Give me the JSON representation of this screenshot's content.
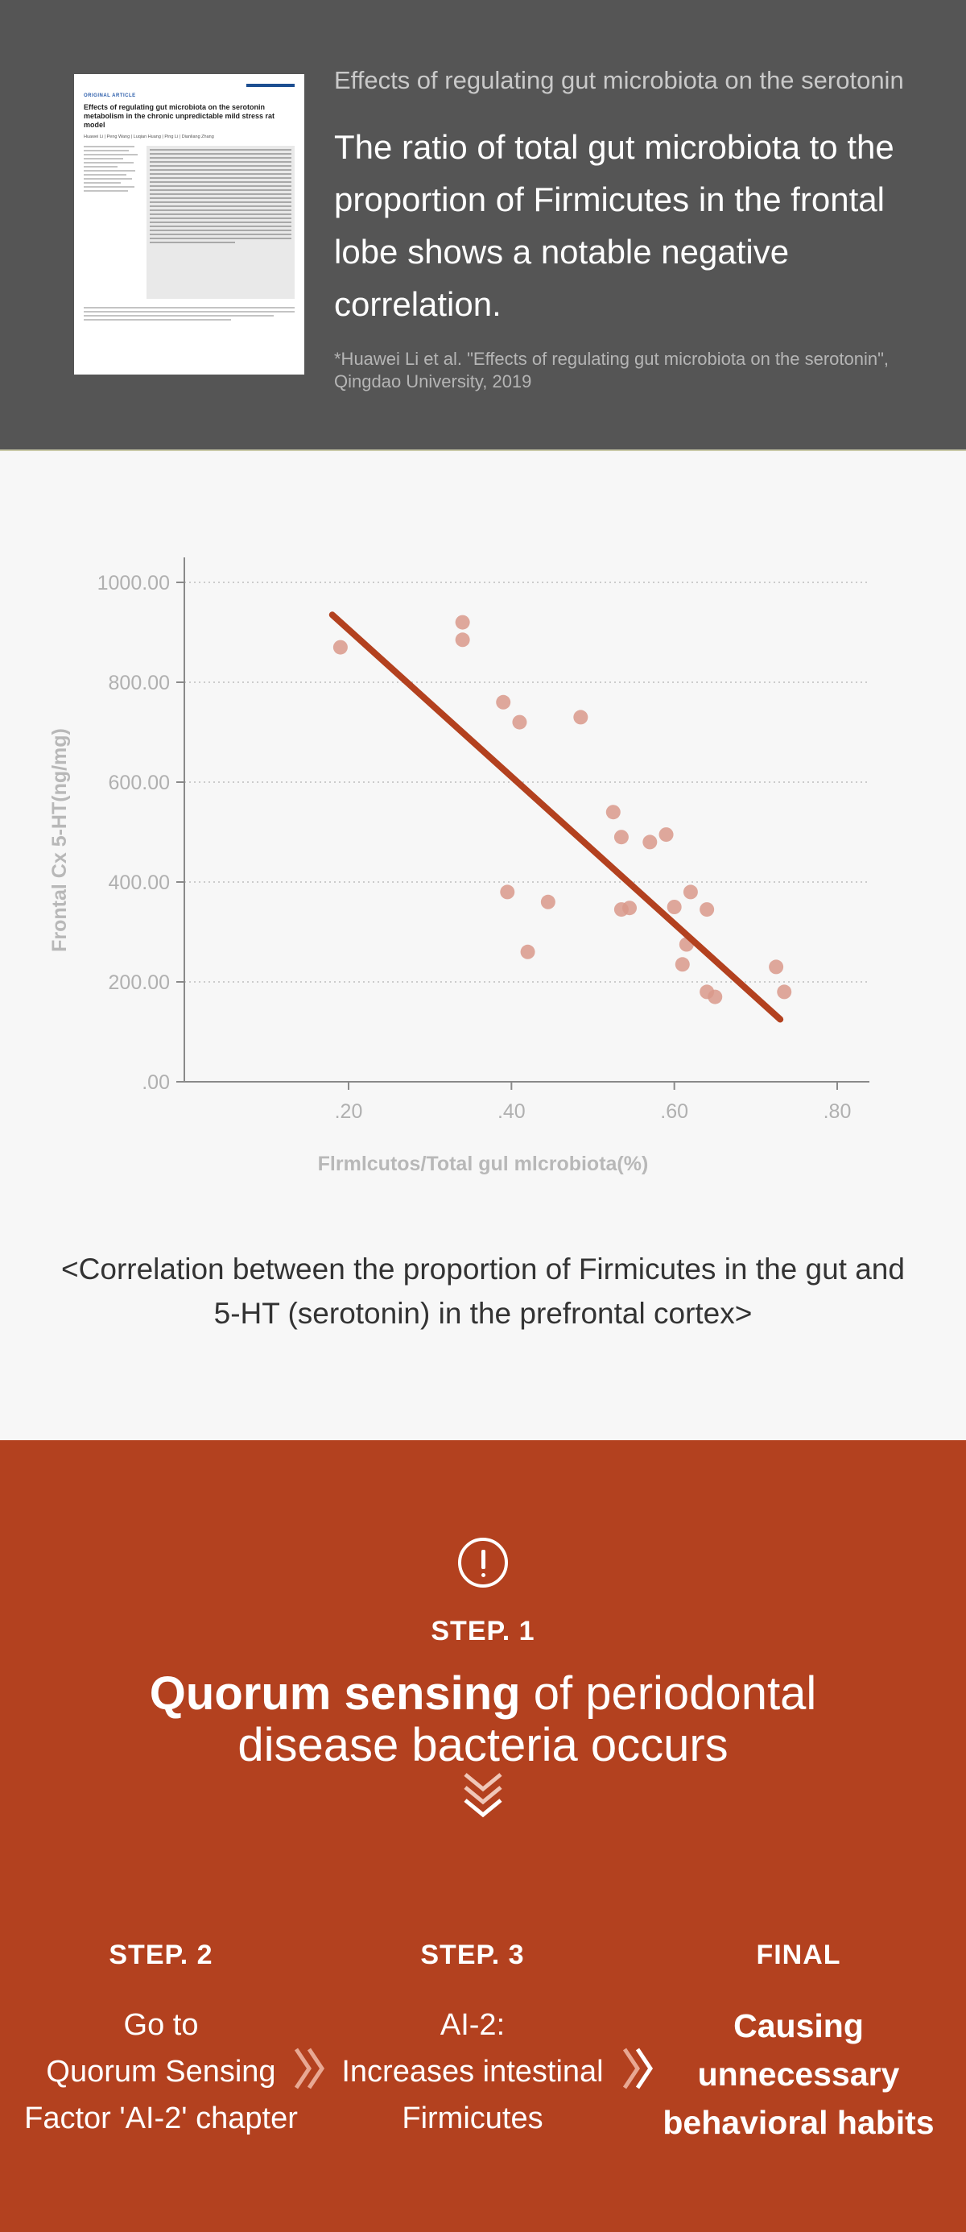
{
  "header": {
    "subtitle": "Effects of regulating gut microbiota on the serotonin",
    "title": "The ratio of total gut microbiota to the proportion of Firmicutes in the frontal lobe shows a notable negative correlation.",
    "citation": "*Huawei Li et al. \"Effects of regulating gut microbiota on the serotonin\", Qingdao University, 2019",
    "paper_thumbnail": {
      "label": "ORIGINAL ARTICLE",
      "title": "Effects of regulating gut microbiota on the serotonin metabolism in the chronic unpredictable mild stress rat model",
      "authors": "Huawei Li | Peng Wang | Luqian Huang | Ping Li | Dianliang Zhang"
    }
  },
  "chart_data": {
    "type": "scatter",
    "xlabel": "Flrmlcutos/Total gul mlcrobiota(%)",
    "ylabel": "Frontal Cx 5-HT(ng/mg)",
    "xlim": [
      0.1,
      0.85
    ],
    "ylim": [
      0,
      1050
    ],
    "xticks": [
      ".20",
      ".40",
      ".60",
      ".80"
    ],
    "xtick_values": [
      0.2,
      0.4,
      0.6,
      0.8
    ],
    "yticks": [
      ".00",
      "200.00",
      "400.00",
      "600.00",
      "800.00",
      "1000.00"
    ],
    "ytick_values": [
      0,
      200,
      400,
      600,
      800,
      1000
    ],
    "grid": "horizontal dotted",
    "points": [
      {
        "x": 0.19,
        "y": 870
      },
      {
        "x": 0.34,
        "y": 920
      },
      {
        "x": 0.34,
        "y": 885
      },
      {
        "x": 0.39,
        "y": 760
      },
      {
        "x": 0.41,
        "y": 720
      },
      {
        "x": 0.485,
        "y": 730
      },
      {
        "x": 0.395,
        "y": 380
      },
      {
        "x": 0.445,
        "y": 360
      },
      {
        "x": 0.42,
        "y": 260
      },
      {
        "x": 0.525,
        "y": 540
      },
      {
        "x": 0.535,
        "y": 490
      },
      {
        "x": 0.57,
        "y": 480
      },
      {
        "x": 0.59,
        "y": 495
      },
      {
        "x": 0.535,
        "y": 345
      },
      {
        "x": 0.545,
        "y": 348
      },
      {
        "x": 0.6,
        "y": 350
      },
      {
        "x": 0.62,
        "y": 380
      },
      {
        "x": 0.64,
        "y": 345
      },
      {
        "x": 0.615,
        "y": 275
      },
      {
        "x": 0.61,
        "y": 235
      },
      {
        "x": 0.64,
        "y": 180
      },
      {
        "x": 0.65,
        "y": 170
      },
      {
        "x": 0.725,
        "y": 230
      },
      {
        "x": 0.735,
        "y": 180
      }
    ],
    "trendline": {
      "x": [
        0.18,
        0.73
      ],
      "y": [
        935,
        125
      ]
    },
    "point_color": "#d9998b",
    "line_color": "#b3411f"
  },
  "caption": "<Correlation between the proportion of Firmicutes in the gut and 5-HT (serotonin) in the prefrontal cortex>",
  "steps": {
    "step1": {
      "label": "STEP. 1",
      "bold_text": "Quorum sensing",
      "text": " of periodontal disease bacteria occurs"
    },
    "step2": {
      "label": "STEP. 2",
      "line1": "Go to",
      "line2": "Quorum Sensing",
      "line3": "Factor 'AI-2' chapter"
    },
    "step3": {
      "label": "STEP. 3",
      "line1": "AI-2:",
      "line2": "Increases intestinal",
      "line3": "Firmicutes"
    },
    "final": {
      "label": "FINAL",
      "line1": "Causing",
      "line2": "unnecessary",
      "line3": "behavioral habits"
    },
    "accent_color": "#b3411f"
  }
}
